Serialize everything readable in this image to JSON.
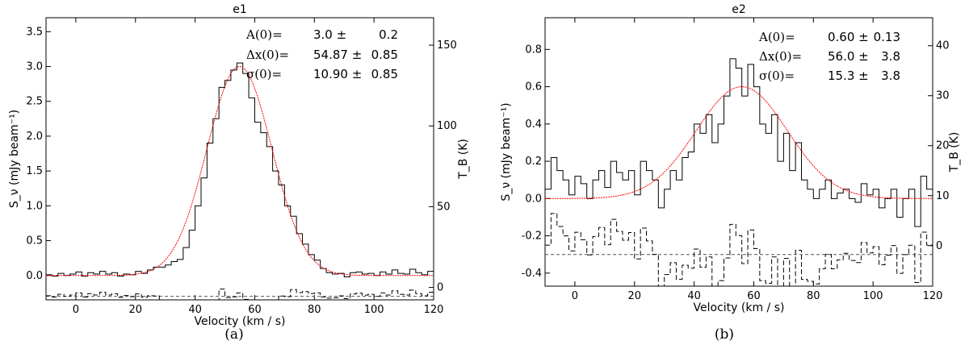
{
  "chart_data": [
    {
      "type": "line",
      "title": "e1",
      "caption": "(a)",
      "xlabel": "Velocity (km / s)",
      "ylabel": "S_ν (mJy beam⁻¹)",
      "y2label": "T_B (K)",
      "xlim": [
        -10,
        120
      ],
      "ylim": [
        -0.35,
        3.7
      ],
      "y2lim": [
        -7.7,
        167
      ],
      "xticks": [
        0,
        20,
        40,
        60,
        80,
        100,
        120
      ],
      "yticks": [
        0.0,
        0.5,
        1.0,
        1.5,
        2.0,
        2.5,
        3.0,
        3.5
      ],
      "y2ticks": [
        0,
        50,
        100,
        150
      ],
      "grid": false,
      "annotations": [
        {
          "label": "A(0)=",
          "value": "3.0",
          "sep": "±",
          "error": "0.2"
        },
        {
          "label": "Δx(0)=",
          "value": "54.87",
          "sep": "±",
          "error": "0.85"
        },
        {
          "label": "σ(0)=",
          "value": "10.90",
          "sep": "±",
          "error": "0.85"
        }
      ],
      "fit": {
        "name": "Gaussian fit",
        "color": "#ff0000",
        "amplitude": 3.0,
        "center": 54.87,
        "sigma": 10.9,
        "offset": 0.0
      },
      "residual_offset": -0.3,
      "channel_width": 2,
      "x": [
        -10,
        -8,
        -6,
        -4,
        -2,
        0,
        2,
        4,
        6,
        8,
        10,
        12,
        14,
        16,
        18,
        20,
        22,
        24,
        26,
        28,
        30,
        32,
        34,
        36,
        38,
        40,
        42,
        44,
        46,
        48,
        50,
        52,
        54,
        56,
        58,
        60,
        62,
        64,
        66,
        68,
        70,
        72,
        74,
        76,
        78,
        80,
        82,
        84,
        86,
        88,
        90,
        92,
        94,
        96,
        98,
        100,
        102,
        104,
        106,
        108,
        110,
        112,
        114,
        116,
        118
      ],
      "series": [
        {
          "values": [
            0.01,
            -0.01,
            0.03,
            0.0,
            0.02,
            0.05,
            -0.01,
            0.04,
            0.02,
            0.06,
            0.02,
            0.04,
            -0.01,
            0.02,
            0.01,
            0.06,
            0.03,
            0.08,
            0.12,
            0.12,
            0.15,
            0.2,
            0.23,
            0.4,
            0.65,
            1.0,
            1.4,
            1.9,
            2.25,
            2.7,
            2.8,
            2.95,
            3.05,
            2.9,
            2.55,
            2.2,
            2.05,
            1.85,
            1.5,
            1.3,
            1.0,
            0.85,
            0.6,
            0.45,
            0.3,
            0.22,
            0.1,
            0.04,
            0.02,
            0.03,
            -0.02,
            0.04,
            0.05,
            0.02,
            0.03,
            0.0,
            0.05,
            0.02,
            0.08,
            0.03,
            0.02,
            0.09,
            0.04,
            0.01,
            0.06
          ]
        }
      ]
    },
    {
      "type": "line",
      "title": "e2",
      "caption": "(b)",
      "xlabel": "Velocity (km / s)",
      "ylabel": "S_ν (mJy beam⁻¹)",
      "y2label": "T_B (K)",
      "xlim": [
        -10,
        120
      ],
      "ylim": [
        -0.47,
        0.97
      ],
      "y2lim": [
        -8.1,
        45.6
      ],
      "xticks": [
        0,
        20,
        40,
        60,
        80,
        100,
        120
      ],
      "yticks": [
        -0.4,
        -0.2,
        0.0,
        0.2,
        0.4,
        0.6,
        0.8
      ],
      "y2ticks": [
        0,
        10,
        20,
        30,
        40
      ],
      "grid": false,
      "annotations": [
        {
          "label": "A(0)=",
          "value": "0.60",
          "sep": "±",
          "error": "0.13"
        },
        {
          "label": "Δx(0)=",
          "value": "56.0",
          "sep": "±",
          "error": "3.8"
        },
        {
          "label": "σ(0)=",
          "value": "15.3",
          "sep": "±",
          "error": "3.8"
        }
      ],
      "fit": {
        "name": "Gaussian fit",
        "color": "#ff0000",
        "amplitude": 0.6,
        "center": 56.0,
        "sigma": 15.3,
        "offset": 0.0
      },
      "residual_offset": -0.3,
      "channel_width": 2,
      "x": [
        -10,
        -8,
        -6,
        -4,
        -2,
        0,
        2,
        4,
        6,
        8,
        10,
        12,
        14,
        16,
        18,
        20,
        22,
        24,
        26,
        28,
        30,
        32,
        34,
        36,
        38,
        40,
        42,
        44,
        46,
        48,
        50,
        52,
        54,
        56,
        58,
        60,
        62,
        64,
        66,
        68,
        70,
        72,
        74,
        76,
        78,
        80,
        82,
        84,
        86,
        88,
        90,
        92,
        94,
        96,
        98,
        100,
        102,
        104,
        106,
        108,
        110,
        112,
        114,
        116,
        118
      ],
      "series": [
        {
          "values": [
            0.05,
            0.22,
            0.15,
            0.1,
            0.02,
            0.12,
            0.08,
            0.0,
            0.1,
            0.15,
            0.06,
            0.2,
            0.14,
            0.1,
            0.15,
            0.02,
            0.2,
            0.15,
            0.1,
            -0.05,
            0.05,
            0.15,
            0.1,
            0.22,
            0.25,
            0.4,
            0.35,
            0.45,
            0.3,
            0.4,
            0.55,
            0.75,
            0.7,
            0.55,
            0.72,
            0.6,
            0.4,
            0.35,
            0.45,
            0.2,
            0.35,
            0.15,
            0.3,
            0.1,
            0.05,
            0.0,
            0.05,
            0.1,
            0.0,
            0.03,
            0.05,
            0.0,
            -0.02,
            0.08,
            0.02,
            0.05,
            -0.05,
            0.0,
            0.05,
            -0.1,
            0.0,
            0.05,
            -0.15,
            0.12,
            0.05
          ]
        }
      ]
    }
  ]
}
